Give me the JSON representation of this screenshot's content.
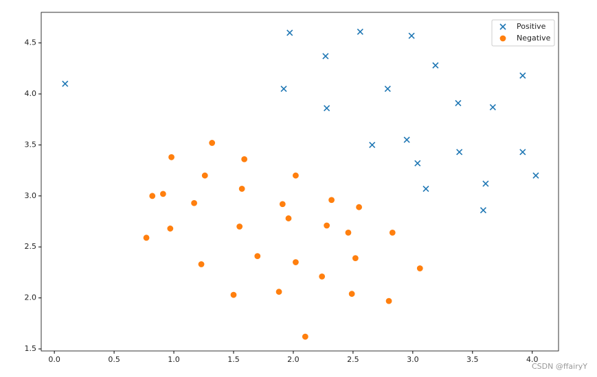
{
  "chart_data": {
    "type": "scatter",
    "xlim": [
      -0.11,
      4.22
    ],
    "ylim": [
      1.48,
      4.8
    ],
    "xticks": [
      {
        "value": 0,
        "label": "0.0"
      },
      0.5,
      {
        "value": 1,
        "label": "1.0"
      },
      1.5,
      {
        "value": 2,
        "label": "2.0"
      },
      2.5,
      {
        "value": 3,
        "label": "3.0"
      },
      3.5,
      {
        "value": 4,
        "label": "4.0"
      }
    ],
    "yticks": [
      1.5,
      {
        "value": 2,
        "label": "2.0"
      },
      2.5,
      {
        "value": 3,
        "label": "3.0"
      },
      3.5,
      {
        "value": 4,
        "label": "4.0"
      },
      4.5
    ],
    "legend": "upper right",
    "watermark": "CSDN @ffairyY",
    "series": [
      {
        "name": "Positive",
        "color": "#1f77b4",
        "marker": "x",
        "x": [
          0.09,
          1.97,
          2.56,
          2.99,
          2.27,
          3.19,
          1.92,
          2.79,
          3.92,
          2.28,
          3.38,
          3.67,
          2.66,
          2.95,
          3.39,
          3.92,
          3.04,
          4.03,
          3.11,
          3.61,
          3.59
        ],
        "values": [
          4.1,
          4.6,
          4.61,
          4.57,
          4.37,
          4.28,
          4.05,
          4.05,
          4.18,
          3.86,
          3.91,
          3.87,
          3.5,
          3.55,
          3.43,
          3.43,
          3.32,
          3.2,
          3.07,
          3.12,
          2.86
        ]
      },
      {
        "name": "Negative",
        "color": "#ff7f0e",
        "marker": "o",
        "x": [
          1.32,
          0.98,
          1.59,
          1.26,
          2.02,
          1.57,
          0.82,
          0.91,
          1.17,
          2.32,
          1.91,
          2.55,
          1.96,
          1.55,
          2.28,
          0.97,
          2.46,
          2.83,
          0.77,
          1.7,
          2.02,
          2.52,
          1.23,
          3.06,
          2.24,
          1.5,
          1.88,
          2.49,
          2.8,
          2.1
        ],
        "values": [
          3.52,
          3.38,
          3.36,
          3.2,
          3.2,
          3.07,
          3.0,
          3.02,
          2.93,
          2.96,
          2.92,
          2.89,
          2.78,
          2.7,
          2.71,
          2.68,
          2.64,
          2.64,
          2.59,
          2.41,
          2.35,
          2.39,
          2.33,
          2.29,
          2.21,
          2.03,
          2.06,
          2.04,
          1.97,
          1.62
        ]
      }
    ]
  }
}
